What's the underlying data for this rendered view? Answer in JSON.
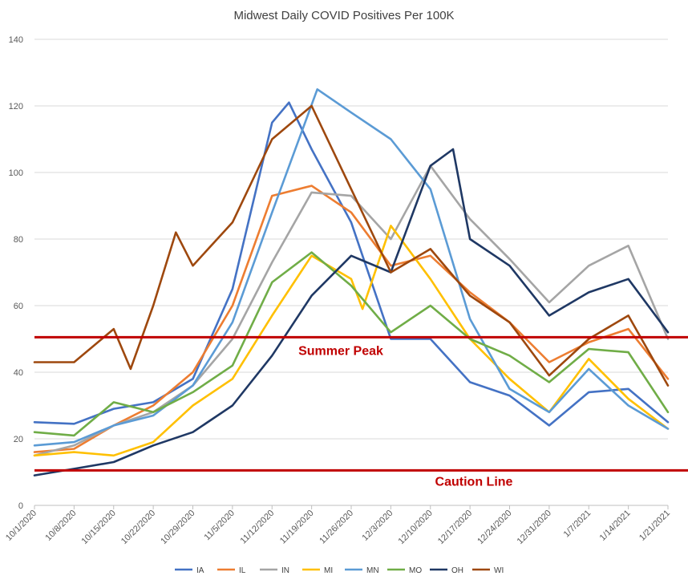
{
  "chart_data": {
    "type": "line",
    "title": "Midwest Daily COVID Positives Per 100K",
    "xlabel": "",
    "ylabel": "",
    "ylim": [
      0,
      140
    ],
    "yticks": [
      0,
      20,
      40,
      60,
      80,
      100,
      120,
      140
    ],
    "grid": true,
    "legend": "bottom",
    "x_start": "10/1/2020",
    "x_end": "1/21/2021",
    "x_tick_labels": [
      "10/1/2020",
      "10/8/2020",
      "10/15/2020",
      "10/22/2020",
      "10/29/2020",
      "11/5/2020",
      "11/12/2020",
      "11/19/2020",
      "11/26/2020",
      "12/3/2020",
      "12/10/2020",
      "12/17/2020",
      "12/24/2020",
      "12/31/2020",
      "1/7/2021",
      "1/14/2021",
      "1/21/2021"
    ],
    "reference_lines": [
      {
        "label": "Summer Peak",
        "value": 50.5,
        "color": "#c00000"
      },
      {
        "label": "Caution Line",
        "value": 10.5,
        "color": "#c00000"
      }
    ],
    "series": [
      {
        "name": "IA",
        "color": "#4472c4",
        "points": [
          [
            "10/1/2020",
            25
          ],
          [
            "10/8/2020",
            24.5
          ],
          [
            "10/15/2020",
            29
          ],
          [
            "10/22/2020",
            31
          ],
          [
            "10/29/2020",
            38
          ],
          [
            "11/5/2020",
            65
          ],
          [
            "11/12/2020",
            115
          ],
          [
            "11/15/2020",
            121
          ],
          [
            "11/19/2020",
            107
          ],
          [
            "11/26/2020",
            85
          ],
          [
            "12/3/2020",
            50
          ],
          [
            "12/10/2020",
            50
          ],
          [
            "12/17/2020",
            37
          ],
          [
            "12/24/2020",
            33
          ],
          [
            "12/31/2020",
            24
          ],
          [
            "1/7/2021",
            34
          ],
          [
            "1/14/2021",
            35
          ],
          [
            "1/21/2021",
            25
          ]
        ]
      },
      {
        "name": "IL",
        "color": "#ed7d31",
        "points": [
          [
            "10/1/2020",
            16
          ],
          [
            "10/8/2020",
            17
          ],
          [
            "10/15/2020",
            24
          ],
          [
            "10/22/2020",
            30
          ],
          [
            "10/29/2020",
            40
          ],
          [
            "11/5/2020",
            60
          ],
          [
            "11/12/2020",
            93
          ],
          [
            "11/19/2020",
            96
          ],
          [
            "11/26/2020",
            88
          ],
          [
            "12/3/2020",
            72
          ],
          [
            "12/10/2020",
            75
          ],
          [
            "12/17/2020",
            64
          ],
          [
            "12/24/2020",
            55
          ],
          [
            "12/31/2020",
            43
          ],
          [
            "1/7/2021",
            49
          ],
          [
            "1/14/2021",
            53
          ],
          [
            "1/21/2021",
            38
          ]
        ]
      },
      {
        "name": "IN",
        "color": "#a5a5a5",
        "points": [
          [
            "10/1/2020",
            15
          ],
          [
            "10/8/2020",
            18
          ],
          [
            "10/15/2020",
            24
          ],
          [
            "10/22/2020",
            28
          ],
          [
            "10/29/2020",
            36
          ],
          [
            "11/5/2020",
            50
          ],
          [
            "11/12/2020",
            73
          ],
          [
            "11/19/2020",
            94
          ],
          [
            "11/26/2020",
            93
          ],
          [
            "12/3/2020",
            80
          ],
          [
            "12/10/2020",
            102
          ],
          [
            "12/17/2020",
            86
          ],
          [
            "12/24/2020",
            74
          ],
          [
            "12/31/2020",
            61
          ],
          [
            "1/7/2021",
            72
          ],
          [
            "1/14/2021",
            78
          ],
          [
            "1/21/2021",
            50
          ]
        ]
      },
      {
        "name": "MI",
        "color": "#ffc000",
        "points": [
          [
            "10/1/2020",
            15
          ],
          [
            "10/8/2020",
            16
          ],
          [
            "10/15/2020",
            15
          ],
          [
            "10/22/2020",
            19
          ],
          [
            "10/29/2020",
            30
          ],
          [
            "11/5/2020",
            38
          ],
          [
            "11/12/2020",
            57
          ],
          [
            "11/19/2020",
            75
          ],
          [
            "11/26/2020",
            68
          ],
          [
            "11/28/2020",
            59
          ],
          [
            "12/3/2020",
            84
          ],
          [
            "12/10/2020",
            68
          ],
          [
            "12/17/2020",
            50
          ],
          [
            "12/24/2020",
            38
          ],
          [
            "12/31/2020",
            28
          ],
          [
            "1/7/2021",
            44
          ],
          [
            "1/14/2021",
            32
          ],
          [
            "1/21/2021",
            23
          ]
        ]
      },
      {
        "name": "MN",
        "color": "#5b9bd5",
        "points": [
          [
            "10/1/2020",
            18
          ],
          [
            "10/8/2020",
            19
          ],
          [
            "10/15/2020",
            24
          ],
          [
            "10/22/2020",
            27
          ],
          [
            "10/29/2020",
            36
          ],
          [
            "11/5/2020",
            55
          ],
          [
            "11/12/2020",
            88
          ],
          [
            "11/20/2020",
            125
          ],
          [
            "11/26/2020",
            118
          ],
          [
            "12/3/2020",
            110
          ],
          [
            "12/10/2020",
            95
          ],
          [
            "12/17/2020",
            56
          ],
          [
            "12/24/2020",
            35
          ],
          [
            "12/31/2020",
            28
          ],
          [
            "1/7/2021",
            41
          ],
          [
            "1/14/2021",
            30
          ],
          [
            "1/21/2021",
            23
          ]
        ]
      },
      {
        "name": "MO",
        "color": "#70ad47",
        "points": [
          [
            "10/1/2020",
            22
          ],
          [
            "10/8/2020",
            21
          ],
          [
            "10/15/2020",
            31
          ],
          [
            "10/22/2020",
            28
          ],
          [
            "10/29/2020",
            34
          ],
          [
            "11/5/2020",
            42
          ],
          [
            "11/12/2020",
            67
          ],
          [
            "11/19/2020",
            76
          ],
          [
            "11/26/2020",
            66
          ],
          [
            "12/3/2020",
            52
          ],
          [
            "12/10/2020",
            60
          ],
          [
            "12/17/2020",
            50
          ],
          [
            "12/24/2020",
            45
          ],
          [
            "12/31/2020",
            37
          ],
          [
            "1/7/2021",
            47
          ],
          [
            "1/14/2021",
            46
          ],
          [
            "1/21/2021",
            28
          ]
        ]
      },
      {
        "name": "OH",
        "color": "#1f3864",
        "points": [
          [
            "10/1/2020",
            9
          ],
          [
            "10/8/2020",
            11
          ],
          [
            "10/15/2020",
            13
          ],
          [
            "10/22/2020",
            18
          ],
          [
            "10/29/2020",
            22
          ],
          [
            "11/5/2020",
            30
          ],
          [
            "11/12/2020",
            45
          ],
          [
            "11/19/2020",
            63
          ],
          [
            "11/26/2020",
            75
          ],
          [
            "12/3/2020",
            70
          ],
          [
            "12/10/2020",
            102
          ],
          [
            "12/14/2020",
            107
          ],
          [
            "12/17/2020",
            80
          ],
          [
            "12/24/2020",
            72
          ],
          [
            "12/31/2020",
            57
          ],
          [
            "1/7/2021",
            64
          ],
          [
            "1/14/2021",
            68
          ],
          [
            "1/21/2021",
            52
          ]
        ]
      },
      {
        "name": "WI",
        "color": "#9e480e",
        "points": [
          [
            "10/1/2020",
            43
          ],
          [
            "10/8/2020",
            43
          ],
          [
            "10/15/2020",
            53
          ],
          [
            "10/18/2020",
            41
          ],
          [
            "10/22/2020",
            60
          ],
          [
            "10/26/2020",
            82
          ],
          [
            "10/29/2020",
            72
          ],
          [
            "11/5/2020",
            85
          ],
          [
            "11/12/2020",
            110
          ],
          [
            "11/19/2020",
            120
          ],
          [
            "11/26/2020",
            95
          ],
          [
            "12/3/2020",
            70
          ],
          [
            "12/10/2020",
            77
          ],
          [
            "12/17/2020",
            63
          ],
          [
            "12/24/2020",
            55
          ],
          [
            "12/31/2020",
            39
          ],
          [
            "1/7/2021",
            50
          ],
          [
            "1/14/2021",
            57
          ],
          [
            "1/21/2021",
            36
          ]
        ]
      }
    ]
  }
}
